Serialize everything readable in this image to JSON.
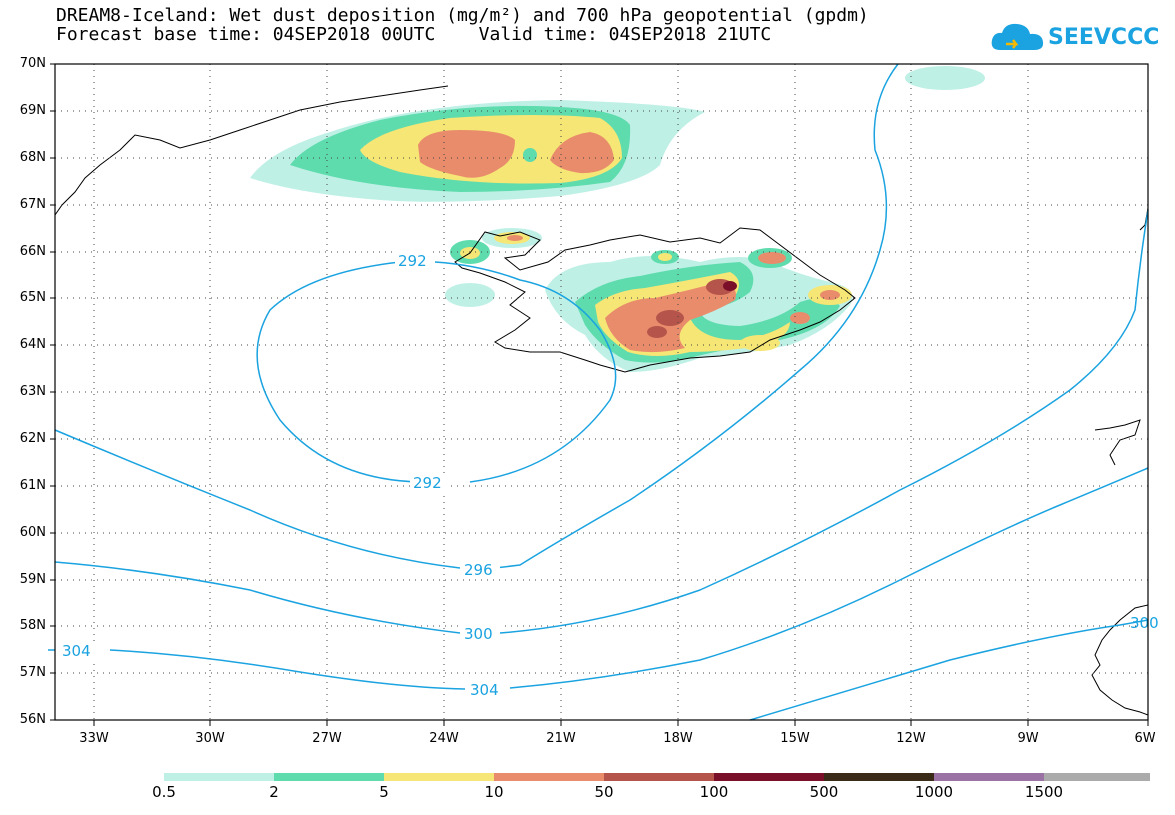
{
  "title": {
    "line1": "DREAM8-Iceland: Wet dust deposition (mg/m²) and 700 hPa geopotential (gpdm)",
    "line2": "Forecast base time: 04SEP2018 00UTC    Valid time: 04SEP2018 21UTC"
  },
  "logo": {
    "text": "SEEVCCC",
    "icon": "cloud-icon"
  },
  "map": {
    "lat_labels": [
      "70N",
      "69N",
      "68N",
      "67N",
      "66N",
      "65N",
      "64N",
      "63N",
      "62N",
      "61N",
      "60N",
      "59N",
      "58N",
      "57N",
      "56N"
    ],
    "lon_labels": [
      "33W",
      "30W",
      "27W",
      "24W",
      "21W",
      "18W",
      "15W",
      "12W",
      "9W",
      "6W"
    ],
    "contour_labels": [
      "292",
      "292",
      "296",
      "300",
      "304",
      "304",
      "300"
    ],
    "contour_color": "#1aa3e0"
  },
  "legend": {
    "labels": [
      "0.5",
      "2",
      "5",
      "10",
      "50",
      "100",
      "500",
      "1000",
      "1500"
    ],
    "colors": [
      "#bff0e6",
      "#5fdcae",
      "#f5e675",
      "#e98c6c",
      "#b5544a",
      "#7a0f2a",
      "#3a2b18",
      "#9a72a4",
      "#ababab"
    ]
  }
}
